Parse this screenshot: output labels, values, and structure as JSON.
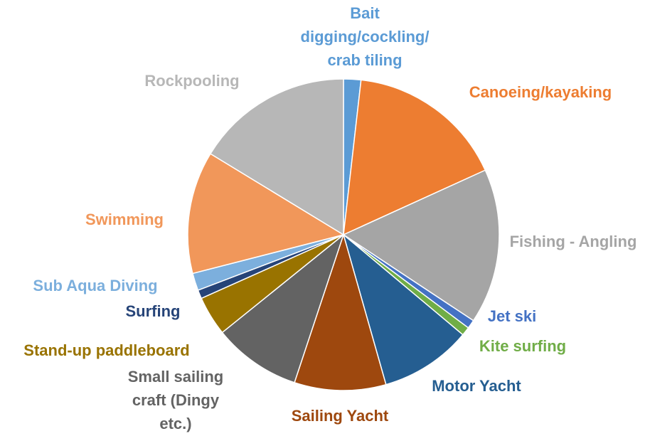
{
  "chart_data": {
    "type": "pie",
    "title": "",
    "start_angle_deg": 0,
    "direction": "clockwise",
    "slices": [
      {
        "label": "Bait digging/cockling/ crab tiling",
        "label_lines": [
          "Bait",
          "digging/cockling/",
          "crab tiling"
        ],
        "value": 1.8,
        "color": "#5b9bd5"
      },
      {
        "label": "Canoeing/kayaking",
        "label_lines": [
          "Canoeing/kayaking"
        ],
        "value": 16.4,
        "color": "#ed7d31"
      },
      {
        "label": "Fishing - Angling",
        "label_lines": [
          "Fishing - Angling"
        ],
        "value": 16.1,
        "color": "#a5a5a5"
      },
      {
        "label": "Jet ski",
        "label_lines": [
          "Jet ski"
        ],
        "value": 0.9,
        "color": "#4472c4"
      },
      {
        "label": "Kite surfing",
        "label_lines": [
          "Kite surfing"
        ],
        "value": 0.9,
        "color": "#70ad47"
      },
      {
        "label": "Motor Yacht",
        "label_lines": [
          "Motor Yacht"
        ],
        "value": 9.5,
        "color": "#255e91"
      },
      {
        "label": "Sailing Yacht",
        "label_lines": [
          "Sailing Yacht"
        ],
        "value": 9.5,
        "color": "#9e480e"
      },
      {
        "label": "Small sailing craft (Dingy etc.)",
        "label_lines": [
          "Small sailing",
          "craft (Dingy",
          "etc.)"
        ],
        "value": 9.1,
        "color": "#636363"
      },
      {
        "label": "Stand-up paddleboard",
        "label_lines": [
          "Stand-up paddleboard"
        ],
        "value": 4.1,
        "color": "#997300"
      },
      {
        "label": "Surfing",
        "label_lines": [
          "Surfing"
        ],
        "value": 0.9,
        "color": "#264478"
      },
      {
        "label": "Sub Aqua Diving",
        "label_lines": [
          "Sub Aqua Diving"
        ],
        "value": 1.8,
        "color": "#7cafdd"
      },
      {
        "label": "Swimming",
        "label_lines": [
          "Swimming"
        ],
        "value": 12.7,
        "color": "#f1975a"
      },
      {
        "label": "Rockpooling",
        "label_lines": [
          "Rockpooling"
        ],
        "value": 16.3,
        "color": "#b7b7b7"
      }
    ]
  }
}
